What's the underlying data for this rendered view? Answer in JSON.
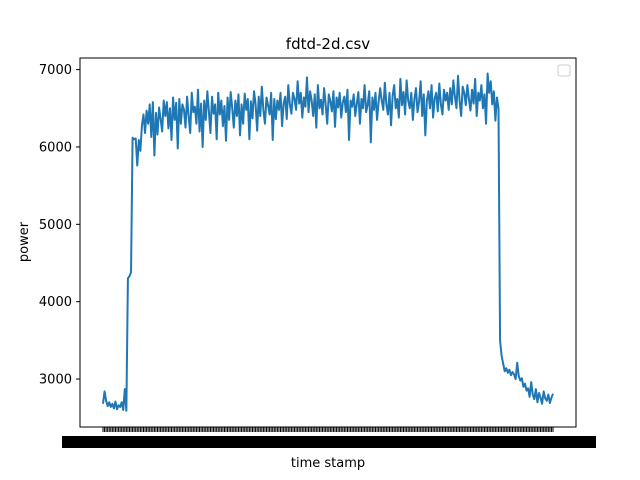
{
  "chart_data": {
    "type": "line",
    "title": "fdtd-2d.csv",
    "xlabel": "time stamp",
    "ylabel": "power",
    "ylim": [
      2380,
      7150
    ],
    "yticks": [
      3000,
      4000,
      5000,
      6000,
      7000
    ],
    "grid": false,
    "legend": {
      "placement": "top-right",
      "entries": []
    },
    "x_tick_labels_note": "dense, overlapping timestamp tick labels (unreadable)",
    "series": [
      {
        "color": "#1f77b4",
        "values": [
          2680,
          2840,
          2720,
          2650,
          2700,
          2640,
          2680,
          2620,
          2710,
          2610,
          2660,
          2640,
          2700,
          2600,
          2870,
          2590,
          4300,
          4330,
          4380,
          6120,
          6100,
          6110,
          5760,
          6090,
          5950,
          6280,
          6420,
          6180,
          6470,
          6300,
          6550,
          6130,
          6580,
          5890,
          6440,
          6160,
          6510,
          6360,
          6200,
          6600,
          6400,
          6580,
          6240,
          6500,
          6090,
          6640,
          6350,
          6570,
          5980,
          6620,
          6300,
          6550,
          6480,
          6250,
          6650,
          6400,
          6180,
          6700,
          6450,
          6520,
          6300,
          6740,
          6200,
          6560,
          6000,
          6600,
          6350,
          6720,
          6460,
          6180,
          6650,
          6430,
          6550,
          6100,
          6700,
          6420,
          6600,
          6270,
          6530,
          6080,
          6640,
          6350,
          6710,
          6500,
          6250,
          6600,
          6400,
          6680,
          6150,
          6550,
          6300,
          6690,
          6480,
          6620,
          6100,
          6590,
          6370,
          6720,
          6550,
          6210,
          6650,
          6400,
          6780,
          6480,
          6300,
          6640,
          6540,
          6420,
          6700,
          6090,
          6620,
          6360,
          6600,
          6480,
          6700,
          6270,
          6560,
          6650,
          6360,
          6800,
          6550,
          6430,
          6700,
          6620,
          6480,
          6850,
          6560,
          6700,
          6380,
          6640,
          6520,
          6900,
          6450,
          6720,
          6600,
          6400,
          6680,
          6250,
          6800,
          6500,
          6610,
          6420,
          6760,
          6550,
          6300,
          6680,
          6590,
          6460,
          6720,
          6260,
          6640,
          6510,
          6700,
          6380,
          6580,
          6650,
          6450,
          6740,
          6090,
          6600,
          6520,
          6680,
          6400,
          6560,
          6710,
          6300,
          6620,
          6500,
          6800,
          6450,
          6550,
          6720,
          6060,
          6640,
          6480,
          6700,
          6350,
          6580,
          6760,
          6600,
          6480,
          6830,
          6550,
          6420,
          6700,
          6280,
          6660,
          6800,
          6500,
          6620,
          6380,
          6880,
          6540,
          6710,
          6420,
          6860,
          6600,
          6500,
          6700,
          6350,
          6620,
          6760,
          6450,
          6590,
          6850,
          6400,
          6680,
          6150,
          6600,
          6720,
          6500,
          6800,
          6380,
          6630,
          6700,
          6460,
          6820,
          6550,
          6420,
          6740,
          6600,
          6700,
          6480,
          6760,
          6550,
          6860,
          6650,
          6500,
          6920,
          6600,
          6400,
          6780,
          6700,
          6540,
          6800,
          6620,
          6470,
          6740,
          6560,
          6880,
          6400,
          6700,
          6600,
          6800,
          6500,
          6680,
          6300,
          6950,
          6700,
          6850,
          6550,
          6720,
          6340,
          6640,
          6500,
          3500,
          3300,
          3200,
          3100,
          3140,
          3080,
          3120,
          3050,
          3090,
          3060,
          3000,
          3210,
          3040,
          2980,
          3010,
          2900,
          2940,
          2850,
          2880,
          2770,
          2960,
          2800,
          2740,
          2870,
          2700,
          2820,
          2760,
          2680,
          2840,
          2750,
          2720,
          2800,
          2690,
          2760,
          2810
        ]
      }
    ]
  }
}
